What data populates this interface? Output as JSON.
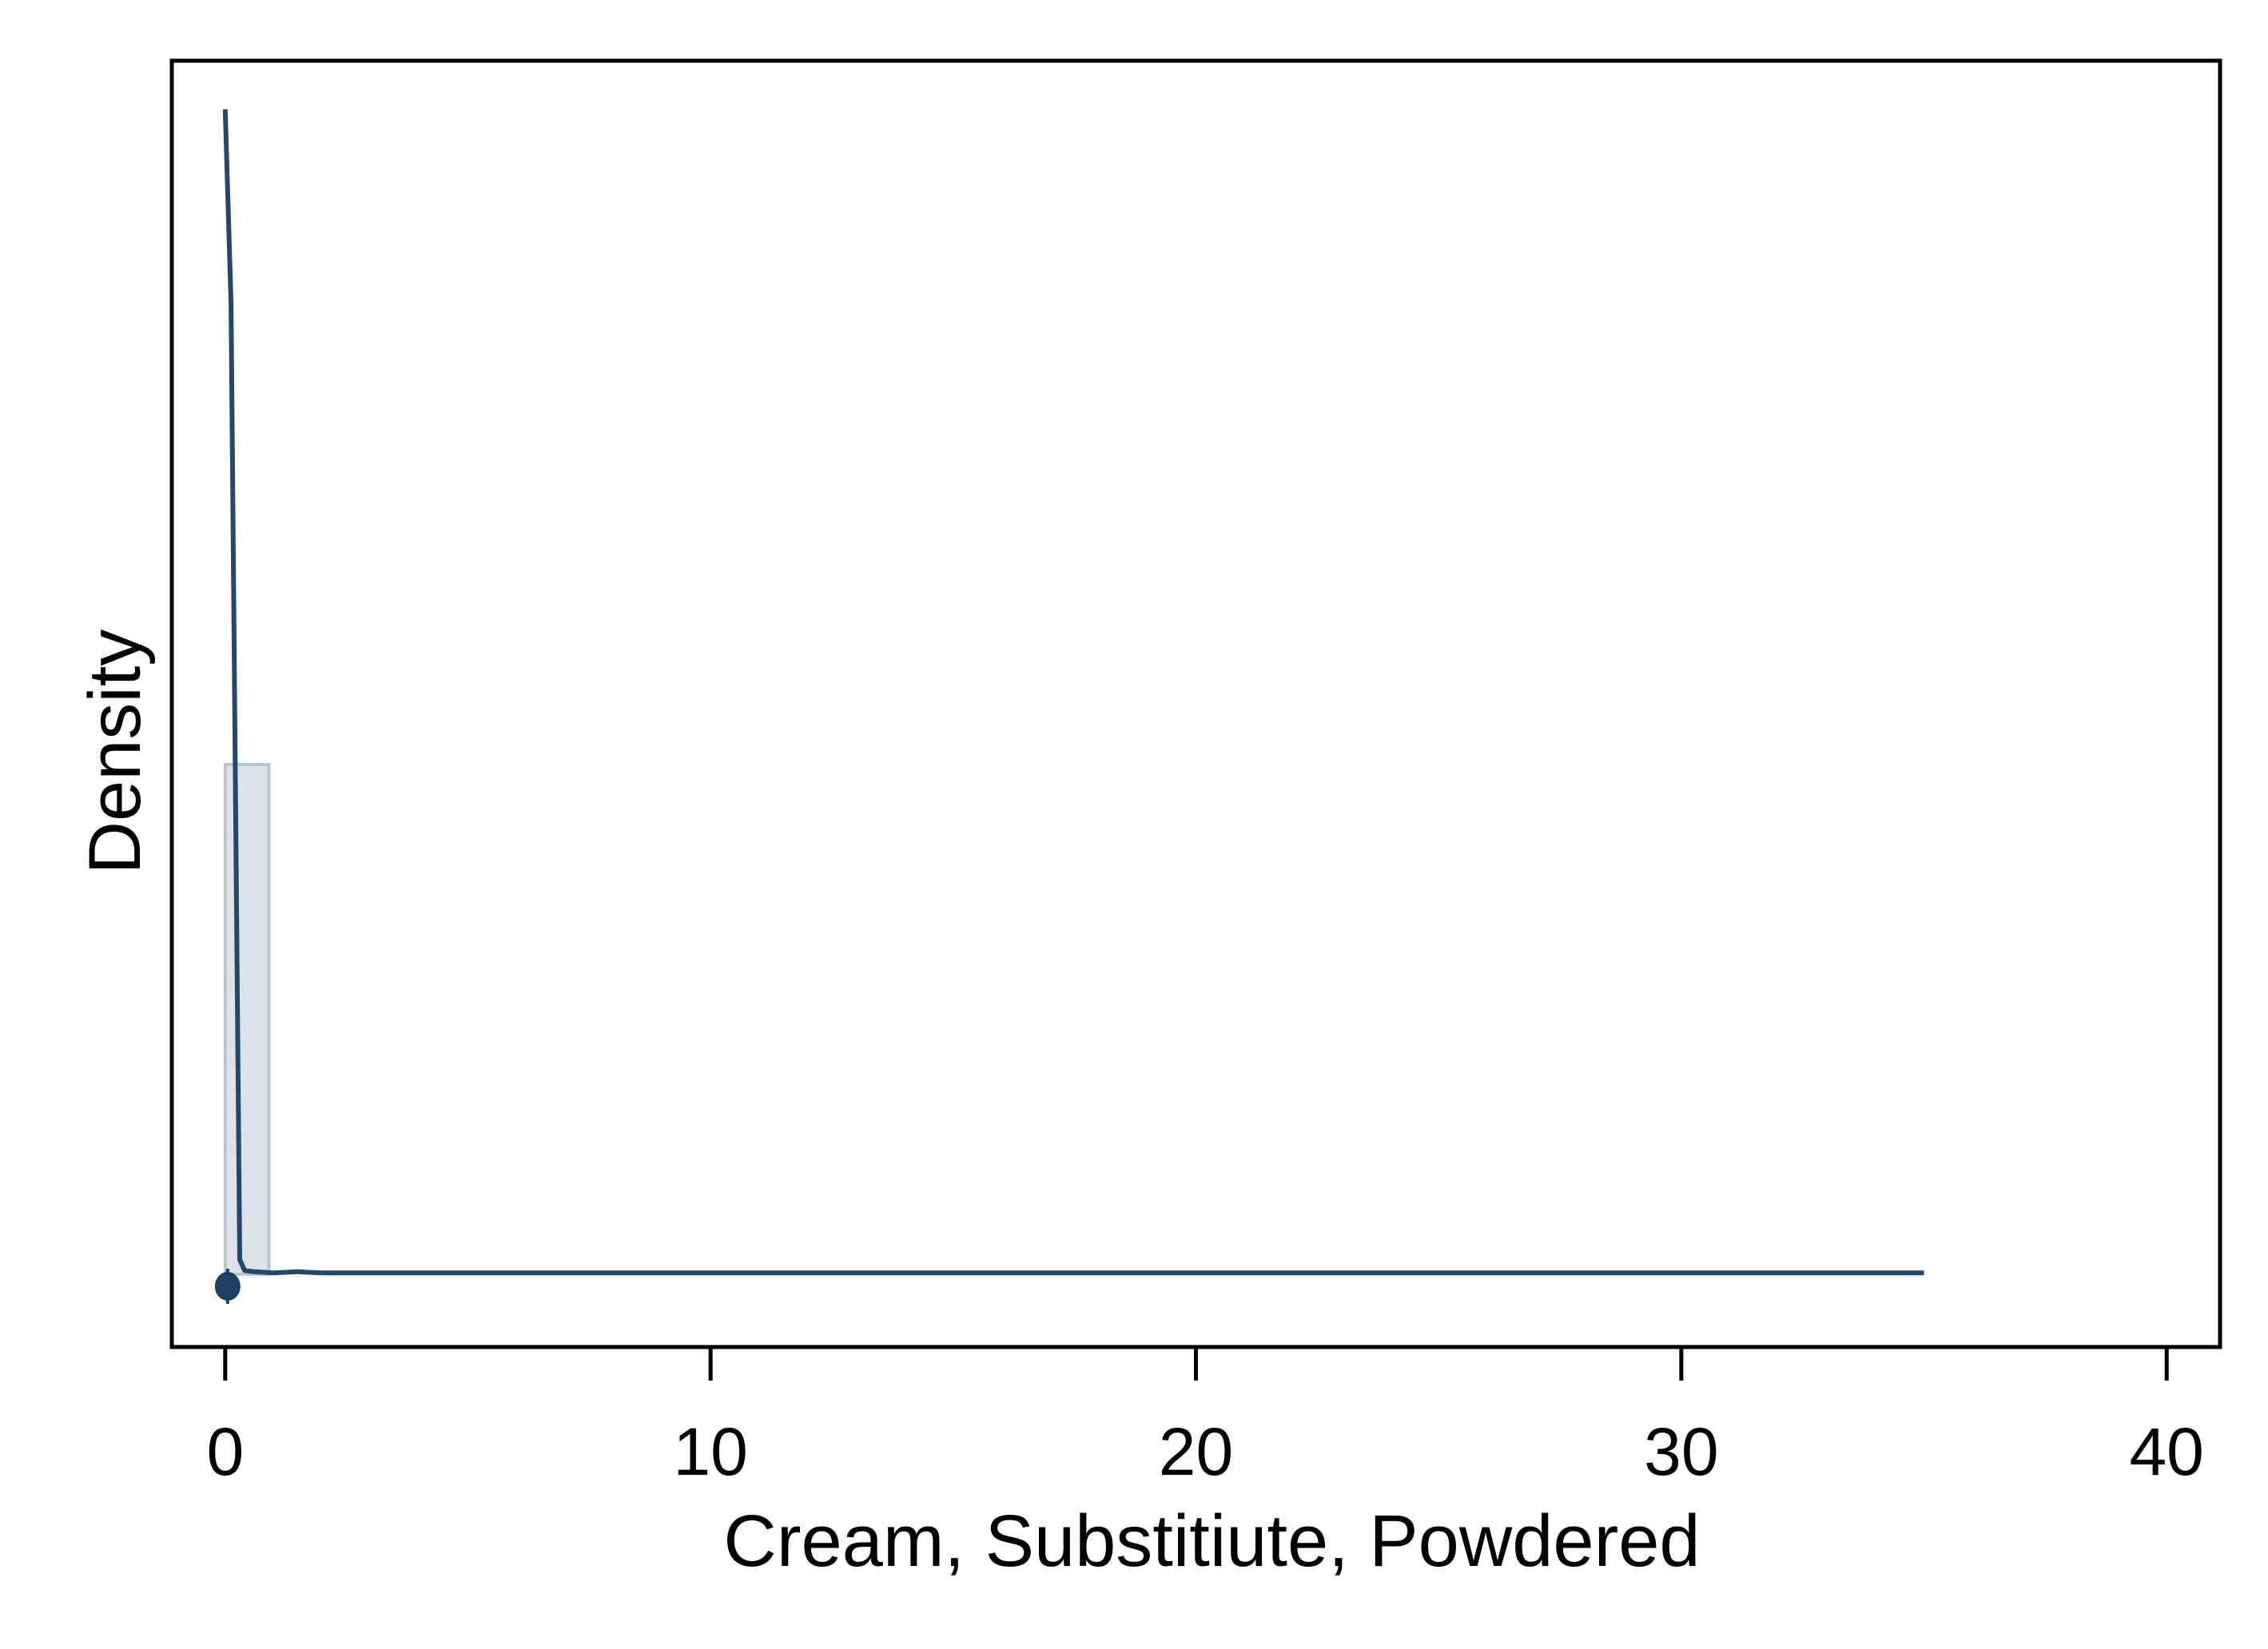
{
  "chart_data": {
    "type": "histogram",
    "xlabel": "Cream, Substitiute, Powdered",
    "ylabel": "Density",
    "xlim": [
      -1.1,
      41.1
    ],
    "ylim": [
      -0.06,
      1.0
    ],
    "x_ticks": [
      0,
      10,
      20,
      30,
      40
    ],
    "x_tick_labels": [
      "0",
      "10",
      "20",
      "30",
      "40"
    ],
    "y_ticks_labeled": false,
    "grid": false,
    "legend": "none",
    "histogram": {
      "bins": [
        {
          "x0": 0.0,
          "x1": 0.9,
          "density": 0.42
        }
      ]
    },
    "density_curve": {
      "x": [
        0.0,
        0.12,
        0.3,
        0.4,
        0.6,
        1.0,
        1.5,
        2.0,
        3.0,
        5.0,
        8.0,
        12.0,
        20.0,
        30.0,
        35.0
      ],
      "y": [
        0.96,
        0.8,
        0.012,
        0.003,
        0.002,
        0.001,
        0.002,
        0.001,
        0.001,
        0.001,
        0.001,
        0.001,
        0.001,
        0.001,
        0.001
      ]
    },
    "marker": {
      "x": 0.05,
      "y": -0.01
    },
    "colors": {
      "line": "#24476b",
      "bar_fill": "#dde3ea",
      "bar_edge": "#b9c5d1",
      "marker": "#1c3f63",
      "frame": "#000000"
    }
  }
}
